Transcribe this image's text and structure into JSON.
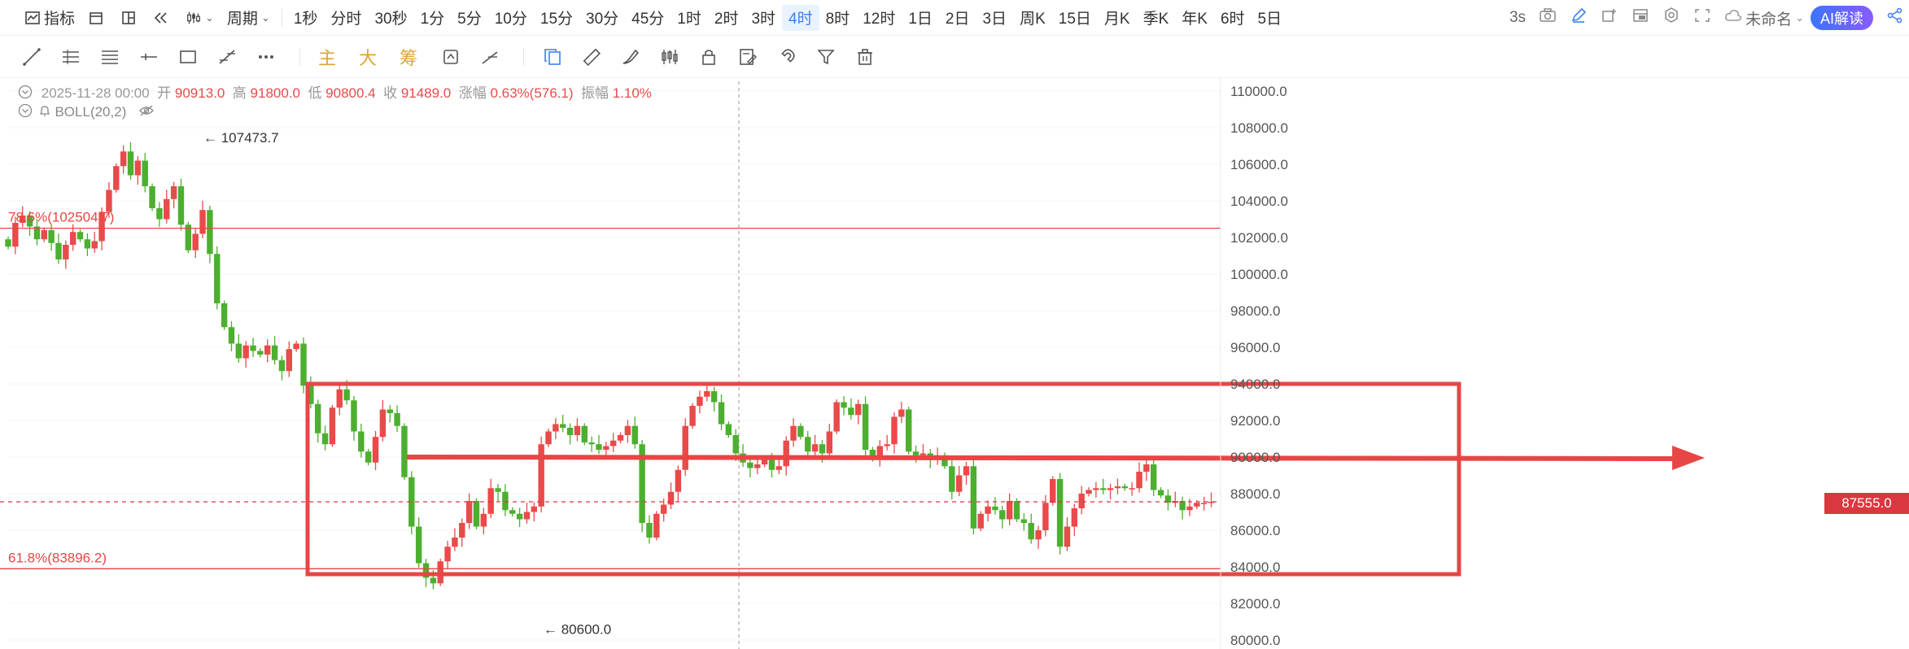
{
  "toolbar": {
    "indicator_label": "指标",
    "period_label": "周期",
    "intervals": [
      "1秒",
      "分时",
      "30秒",
      "1分",
      "5分",
      "10分",
      "15分",
      "30分",
      "45分",
      "1时",
      "2时",
      "3时",
      "4时",
      "8时",
      "12时",
      "1日",
      "2日",
      "3日",
      "周K",
      "15日",
      "月K",
      "季K",
      "年K",
      "6时",
      "5日"
    ],
    "active_interval": "4时",
    "refresh_label": "3s",
    "layout_name": "未命名",
    "ai_button": "AI解读"
  },
  "drawing_toolbar": {
    "text_tools": [
      "主",
      "大",
      "筹"
    ]
  },
  "ohlc": {
    "date": "2025-11-28 00:00",
    "open_label": "开",
    "open": "90913.0",
    "high_label": "高",
    "high": "91800.0",
    "low_label": "低",
    "low": "90800.4",
    "close_label": "收",
    "close": "91489.0",
    "change_label": "涨幅",
    "change": "0.63%(576.1)",
    "amplitude_label": "振幅",
    "amplitude": "1.10%"
  },
  "indicator": {
    "label": "BOLL(20,2)"
  },
  "annotations": {
    "high_marker": "107473.7",
    "low_marker": "80600.0",
    "fib_786": "78.6%(102504.7)",
    "fib_618": "61.8%(83896.2)"
  },
  "current_price": "87555.0",
  "colors": {
    "up": "#e94a4a",
    "down": "#4caf2f",
    "accent": "#3d7ff5",
    "annotation": "#e84545"
  },
  "chart_data": {
    "type": "candlestick",
    "y_ticks": [
      "110000.0",
      "108000.0",
      "106000.0",
      "104000.0",
      "102000.0",
      "100000.0",
      "98000.0",
      "96000.0",
      "94000.0",
      "92000.0",
      "90000.0",
      "88000.0",
      "86000.0",
      "84000.0",
      "82000.0",
      "80000.0"
    ],
    "ylim": [
      80000,
      110000
    ],
    "horizontal_lines": [
      102504.7,
      83896.2
    ],
    "range_box": {
      "top": 94000,
      "bottom": 83600
    },
    "trend_arrow_level": 90000,
    "closes": [
      101500,
      102800,
      103200,
      102600,
      101900,
      102400,
      101700,
      100800,
      101600,
      102300,
      101900,
      101400,
      101800,
      103400,
      104600,
      105900,
      106700,
      105400,
      106200,
      104800,
      103600,
      103000,
      104100,
      104800,
      102700,
      101300,
      102200,
      103500,
      101100,
      98400,
      97100,
      96200,
      95400,
      96100,
      95800,
      95600,
      96100,
      95300,
      94700,
      95900,
      96200,
      93900,
      92900,
      91300,
      90700,
      92700,
      93700,
      93100,
      91400,
      90300,
      89700,
      91100,
      92600,
      92400,
      91700,
      88900,
      86200,
      84200,
      83400,
      83100,
      84300,
      85100,
      85600,
      86400,
      87600,
      86200,
      86900,
      88300,
      88100,
      87100,
      86900,
      86600,
      87000,
      87300,
      90700,
      91400,
      91800,
      91600,
      91200,
      91700,
      90800,
      90700,
      90400,
      90600,
      90900,
      91200,
      91700,
      90700,
      86400,
      85600,
      86900,
      87400,
      88100,
      89300,
      91700,
      92800,
      93300,
      93600,
      93000,
      91800,
      91200,
      90200,
      89700,
      89400,
      89600,
      89900,
      89300,
      89500,
      90900,
      91700,
      91100,
      90300,
      90700,
      90200,
      91400,
      93000,
      92700,
      92300,
      92900,
      90400,
      89900,
      90600,
      90700,
      92200,
      92600,
      90300,
      90100,
      90200,
      89900,
      90100,
      89500,
      88100,
      89000,
      89500,
      86100,
      86900,
      87300,
      87100,
      86600,
      87600,
      86600,
      86400,
      85500,
      86000,
      87500,
      88800,
      85100,
      86200,
      87200,
      88000,
      88200,
      88300,
      88200,
      88300,
      88400,
      88300,
      88300,
      89200,
      89600,
      88200,
      87900,
      87500,
      87600,
      87100,
      87300,
      87500,
      87500,
      87555
    ],
    "current_price": 87555.0,
    "high_marker": 107473.7,
    "low_marker": 80600.0
  }
}
